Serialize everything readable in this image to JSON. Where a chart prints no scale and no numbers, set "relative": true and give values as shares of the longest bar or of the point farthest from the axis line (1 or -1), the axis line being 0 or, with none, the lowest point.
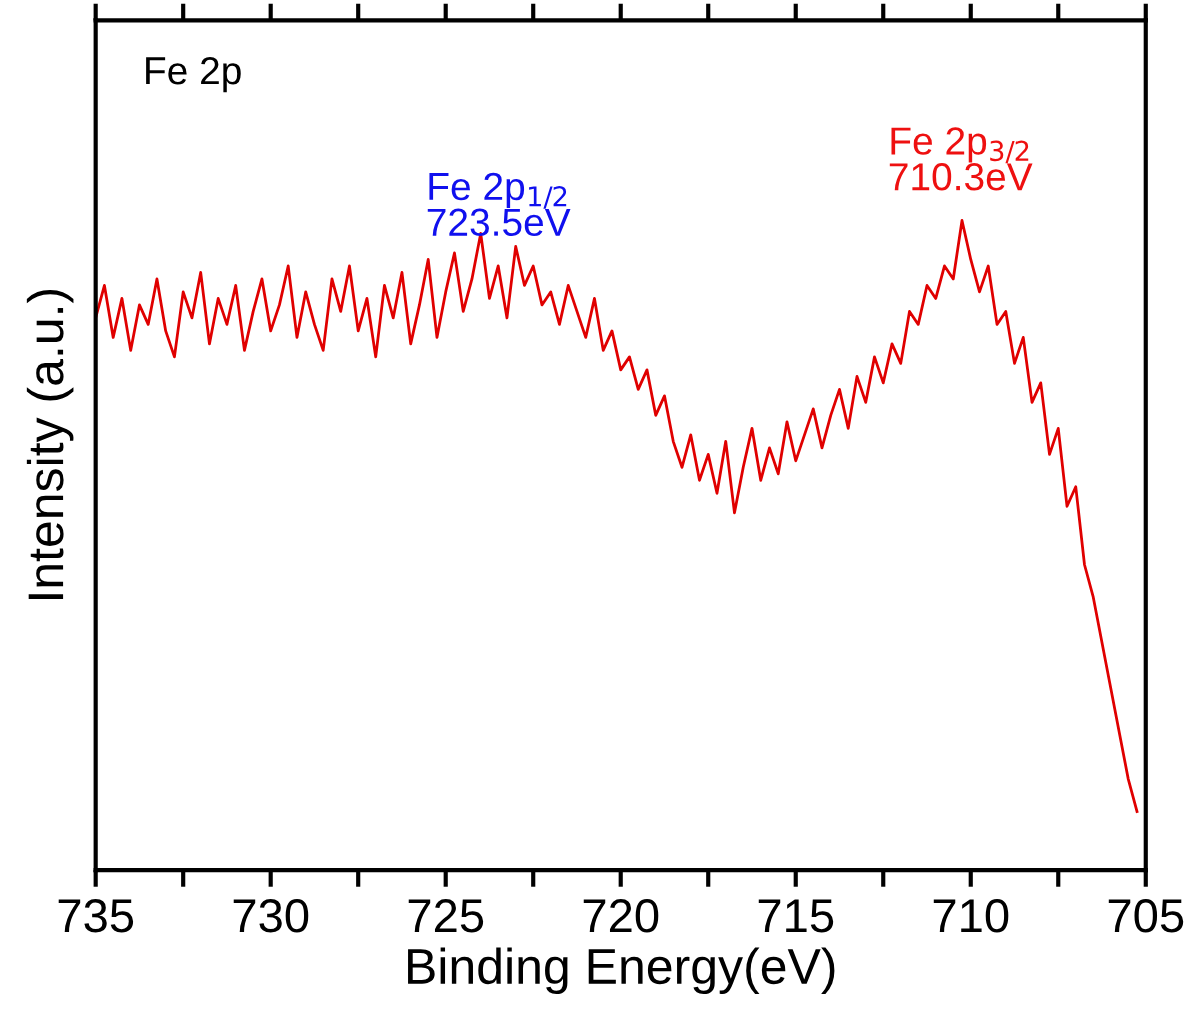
{
  "chart_data": {
    "type": "line",
    "relative": true,
    "xlabel": "Binding Energy(eV)",
    "ylabel": "Intensity (a.u.)",
    "xlim": [
      735,
      705
    ],
    "xticks": [
      735,
      {
        "value": 732.5,
        "label": null
      },
      730,
      {
        "value": 727.5,
        "label": null
      },
      725,
      {
        "value": 722.5,
        "label": null
      },
      720,
      {
        "value": 717.5,
        "label": null
      },
      715,
      {
        "value": 712.5,
        "label": null
      },
      710,
      {
        "value": 707.5,
        "label": null
      },
      705
    ],
    "grid": false,
    "legend": false,
    "marker": "none",
    "line_style": "solid",
    "annotations": [
      "Fe 2p",
      {
        "text": "Fe 2p$_{1/2}$\n723.5eV",
        "x": 723.5,
        "y": 0.93
      },
      {
        "text": "Fe 2p$_{3/2}$\n710.3eV",
        "x": 710.3,
        "y": 1.0
      }
    ],
    "series": [
      {
        "color": "#e00000",
        "x": [
          735,
          734.75,
          734.5,
          734.25,
          734,
          733.75,
          733.5,
          733.25,
          733,
          732.75,
          732.5,
          732.25,
          732,
          731.75,
          731.5,
          731.25,
          731,
          730.75,
          730.5,
          730.25,
          730,
          729.75,
          729.5,
          729.25,
          729,
          728.75,
          728.5,
          728.25,
          728,
          727.75,
          727.5,
          727.25,
          727,
          726.75,
          726.5,
          726.25,
          726,
          725.75,
          725.5,
          725.25,
          725,
          724.75,
          724.5,
          724.25,
          724,
          723.75,
          723.5,
          723.25,
          723,
          722.75,
          722.5,
          722.25,
          722,
          721.75,
          721.5,
          721.25,
          721,
          720.75,
          720.5,
          720.25,
          720,
          719.75,
          719.5,
          719.25,
          719,
          718.75,
          718.5,
          718.25,
          718,
          717.75,
          717.5,
          717.25,
          717,
          716.75,
          716.5,
          716.25,
          716,
          715.75,
          715.5,
          715.25,
          715,
          714.75,
          714.5,
          714.25,
          714,
          713.75,
          713.5,
          713.25,
          713,
          712.75,
          712.5,
          712.25,
          712,
          711.75,
          711.5,
          711.25,
          711,
          710.75,
          710.5,
          710.25,
          710,
          709.75,
          709.5,
          709.25,
          709,
          708.75,
          708.5,
          708.25,
          708,
          707.75,
          707.5,
          707.25,
          707,
          706.75,
          706.5,
          706.25,
          706,
          705.75,
          705.5,
          705.25
        ],
        "values": [
          0.85,
          0.9,
          0.82,
          0.88,
          0.8,
          0.87,
          0.84,
          0.91,
          0.83,
          0.79,
          0.89,
          0.85,
          0.92,
          0.81,
          0.88,
          0.84,
          0.9,
          0.8,
          0.86,
          0.91,
          0.83,
          0.87,
          0.93,
          0.82,
          0.89,
          0.84,
          0.8,
          0.91,
          0.86,
          0.93,
          0.83,
          0.88,
          0.79,
          0.9,
          0.85,
          0.92,
          0.81,
          0.87,
          0.94,
          0.82,
          0.89,
          0.95,
          0.86,
          0.91,
          0.98,
          0.88,
          0.93,
          0.85,
          0.96,
          0.9,
          0.93,
          0.87,
          0.89,
          0.84,
          0.9,
          0.86,
          0.82,
          0.88,
          0.8,
          0.83,
          0.77,
          0.79,
          0.74,
          0.77,
          0.7,
          0.73,
          0.66,
          0.62,
          0.67,
          0.6,
          0.64,
          0.58,
          0.66,
          0.55,
          0.62,
          0.68,
          0.6,
          0.65,
          0.61,
          0.69,
          0.63,
          0.67,
          0.71,
          0.65,
          0.7,
          0.74,
          0.68,
          0.76,
          0.72,
          0.79,
          0.75,
          0.81,
          0.78,
          0.86,
          0.84,
          0.9,
          0.88,
          0.93,
          0.91,
          1.0,
          0.94,
          0.89,
          0.93,
          0.84,
          0.86,
          0.78,
          0.82,
          0.72,
          0.75,
          0.64,
          0.68,
          0.56,
          0.59,
          0.47,
          0.42,
          0.35,
          0.28,
          0.21,
          0.14,
          0.09
        ]
      }
    ]
  }
}
